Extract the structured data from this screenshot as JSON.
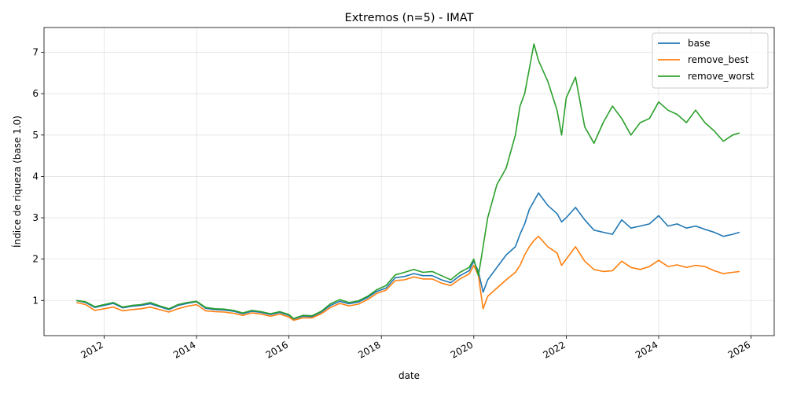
{
  "chart_data": {
    "type": "line",
    "title": "Extremos (n=5) - IMAT",
    "xlabel": "date",
    "ylabel": "Índice de riqueza (base 1.0)",
    "xlim": [
      2010.7,
      2026.5
    ],
    "ylim": [
      0.15,
      7.6
    ],
    "x_ticks": [
      2012,
      2014,
      2016,
      2018,
      2020,
      2022,
      2024,
      2026
    ],
    "x_tick_labels": [
      "2012",
      "2014",
      "2016",
      "2018",
      "2020",
      "2022",
      "2024",
      "2026"
    ],
    "y_ticks": [
      1,
      2,
      3,
      4,
      5,
      6,
      7
    ],
    "y_tick_labels": [
      "1",
      "2",
      "3",
      "4",
      "5",
      "6",
      "7"
    ],
    "grid": true,
    "legend_position": "top-right",
    "x": [
      2011.4,
      2011.6,
      2011.8,
      2012.0,
      2012.2,
      2012.4,
      2012.6,
      2012.8,
      2013.0,
      2013.2,
      2013.4,
      2013.6,
      2013.8,
      2014.0,
      2014.2,
      2014.4,
      2014.6,
      2014.8,
      2015.0,
      2015.2,
      2015.4,
      2015.6,
      2015.8,
      2016.0,
      2016.1,
      2016.3,
      2016.5,
      2016.7,
      2016.9,
      2017.1,
      2017.3,
      2017.5,
      2017.7,
      2017.9,
      2018.1,
      2018.3,
      2018.5,
      2018.7,
      2018.9,
      2019.1,
      2019.3,
      2019.5,
      2019.7,
      2019.9,
      2020.0,
      2020.1,
      2020.2,
      2020.3,
      2020.5,
      2020.7,
      2020.9,
      2021.0,
      2021.1,
      2021.2,
      2021.3,
      2021.4,
      2021.6,
      2021.8,
      2021.9,
      2022.0,
      2022.2,
      2022.4,
      2022.6,
      2022.8,
      2023.0,
      2023.2,
      2023.4,
      2023.6,
      2023.8,
      2024.0,
      2024.2,
      2024.4,
      2024.6,
      2024.8,
      2025.0,
      2025.2,
      2025.4,
      2025.6,
      2025.75
    ],
    "series": [
      {
        "name": "base",
        "color": "#1f77b4",
        "values": [
          1.0,
          0.95,
          0.83,
          0.88,
          0.93,
          0.82,
          0.86,
          0.88,
          0.92,
          0.85,
          0.78,
          0.88,
          0.93,
          0.97,
          0.81,
          0.78,
          0.77,
          0.74,
          0.68,
          0.74,
          0.71,
          0.66,
          0.71,
          0.64,
          0.55,
          0.62,
          0.61,
          0.72,
          0.88,
          0.98,
          0.92,
          0.96,
          1.07,
          1.22,
          1.3,
          1.55,
          1.58,
          1.65,
          1.6,
          1.6,
          1.5,
          1.43,
          1.6,
          1.72,
          1.95,
          1.7,
          1.2,
          1.5,
          1.8,
          2.1,
          2.3,
          2.6,
          2.85,
          3.2,
          3.4,
          3.6,
          3.3,
          3.1,
          2.9,
          3.0,
          3.25,
          2.95,
          2.7,
          2.65,
          2.6,
          2.95,
          2.75,
          2.8,
          2.85,
          3.05,
          2.8,
          2.85,
          2.75,
          2.8,
          2.72,
          2.65,
          2.55,
          2.6,
          2.65
        ]
      },
      {
        "name": "remove_best",
        "color": "#ff7f0e",
        "values": [
          0.95,
          0.9,
          0.76,
          0.8,
          0.84,
          0.75,
          0.78,
          0.8,
          0.84,
          0.78,
          0.72,
          0.8,
          0.86,
          0.9,
          0.75,
          0.73,
          0.72,
          0.69,
          0.64,
          0.7,
          0.67,
          0.62,
          0.67,
          0.6,
          0.52,
          0.58,
          0.58,
          0.68,
          0.83,
          0.93,
          0.87,
          0.91,
          1.02,
          1.17,
          1.25,
          1.48,
          1.5,
          1.57,
          1.52,
          1.52,
          1.42,
          1.36,
          1.52,
          1.64,
          1.85,
          1.6,
          0.8,
          1.1,
          1.3,
          1.5,
          1.68,
          1.85,
          2.1,
          2.3,
          2.45,
          2.55,
          2.3,
          2.15,
          1.85,
          2.0,
          2.3,
          1.95,
          1.75,
          1.7,
          1.72,
          1.95,
          1.8,
          1.75,
          1.82,
          1.97,
          1.82,
          1.86,
          1.8,
          1.85,
          1.82,
          1.72,
          1.65,
          1.68,
          1.7
        ]
      },
      {
        "name": "remove_worst",
        "color": "#2ca02c",
        "values": [
          1.0,
          0.97,
          0.85,
          0.9,
          0.95,
          0.84,
          0.88,
          0.9,
          0.95,
          0.87,
          0.8,
          0.9,
          0.95,
          0.98,
          0.83,
          0.8,
          0.79,
          0.76,
          0.7,
          0.76,
          0.73,
          0.68,
          0.73,
          0.66,
          0.56,
          0.64,
          0.63,
          0.74,
          0.92,
          1.02,
          0.95,
          0.99,
          1.1,
          1.26,
          1.36,
          1.62,
          1.68,
          1.75,
          1.68,
          1.7,
          1.6,
          1.5,
          1.68,
          1.8,
          2.0,
          1.6,
          2.3,
          3.0,
          3.8,
          4.2,
          5.0,
          5.7,
          6.0,
          6.6,
          7.2,
          6.8,
          6.3,
          5.6,
          5.0,
          5.9,
          6.4,
          5.2,
          4.8,
          5.3,
          5.7,
          5.4,
          5.0,
          5.3,
          5.4,
          5.8,
          5.6,
          5.5,
          5.3,
          5.6,
          5.3,
          5.1,
          4.85,
          5.0,
          5.05
        ]
      }
    ]
  }
}
